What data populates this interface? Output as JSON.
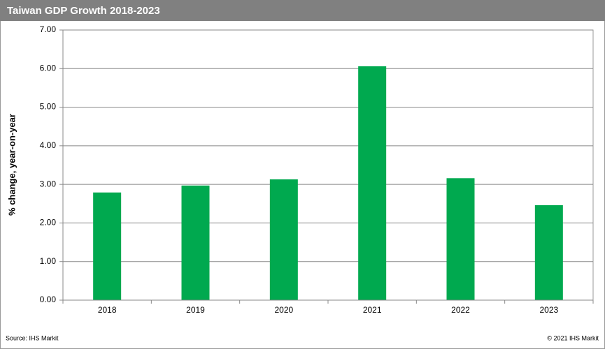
{
  "chart_data": {
    "type": "bar",
    "title": "Taiwan GDP Growth 2018-2023",
    "y_label": "% change, year-on-year",
    "categories": [
      "2018",
      "2019",
      "2020",
      "2021",
      "2022",
      "2023"
    ],
    "values": [
      2.79,
      2.97,
      3.13,
      6.06,
      3.16,
      2.46
    ],
    "color": "#00a94f",
    "ylim": [
      0,
      7
    ],
    "yticks": [
      {
        "value": 0,
        "label": "0.00"
      },
      {
        "value": 1,
        "label": "1.00"
      },
      {
        "value": 2,
        "label": "2.00"
      },
      {
        "value": 3,
        "label": "3.00"
      },
      {
        "value": 4,
        "label": "4.00"
      },
      {
        "value": 5,
        "label": "5.00"
      },
      {
        "value": 6,
        "label": "6.00"
      },
      {
        "value": 7,
        "label": "7.00"
      }
    ],
    "grid": true,
    "source": "Source:  IHS Markit",
    "copyright": "© 2021  IHS Markit"
  }
}
